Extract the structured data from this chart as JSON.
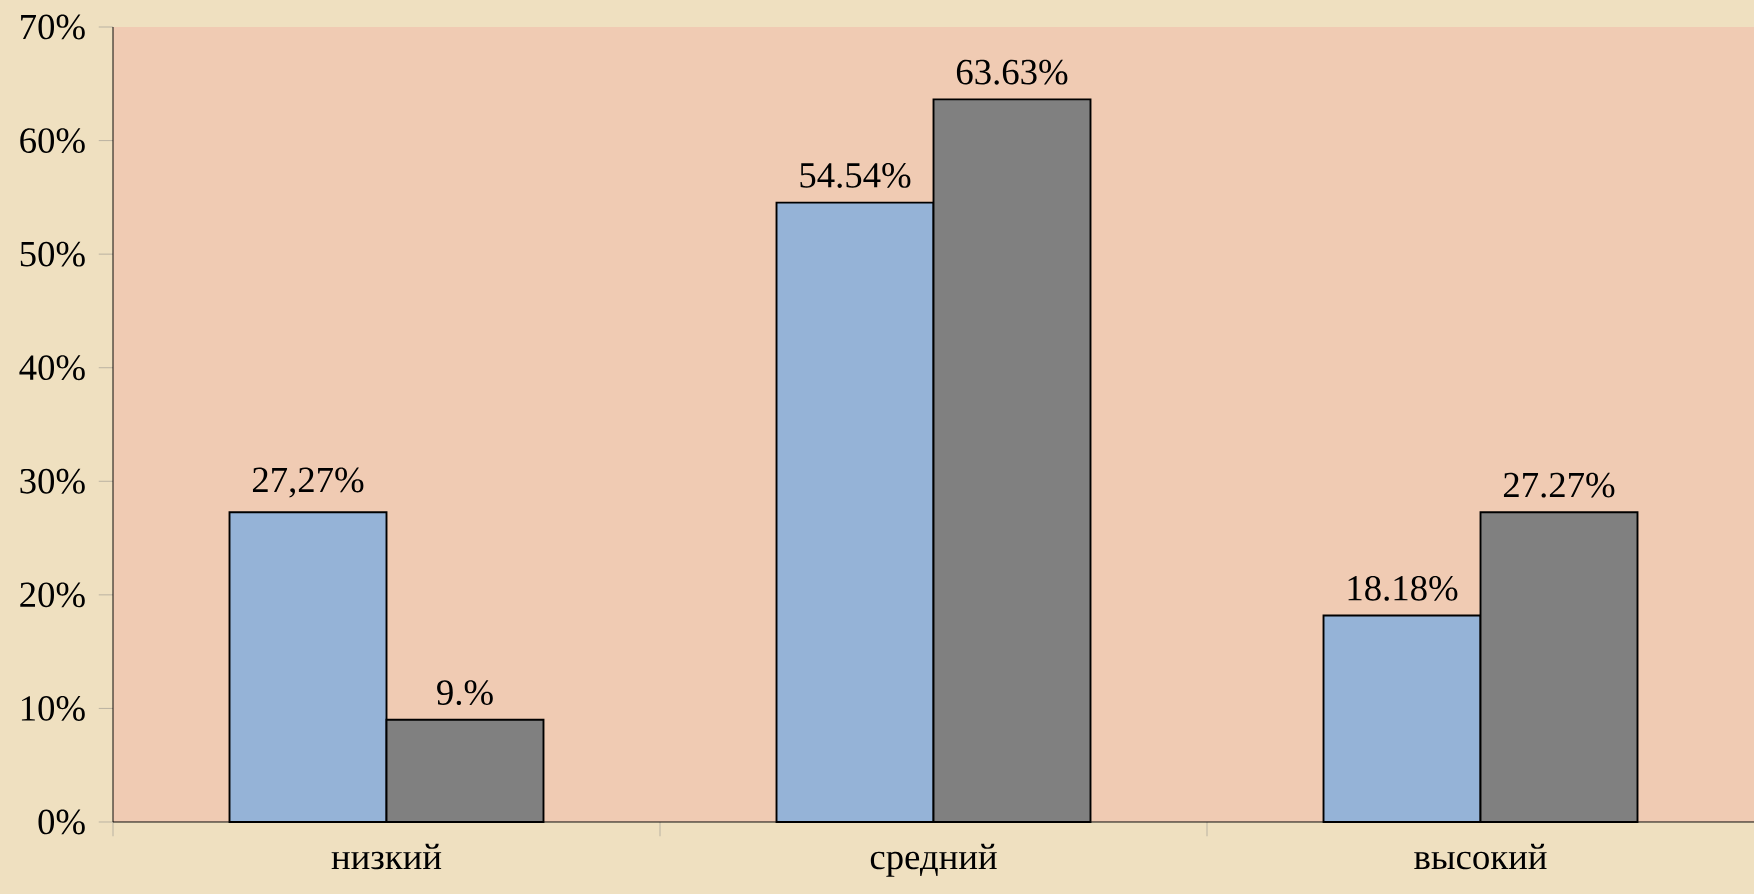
{
  "chart_data": {
    "type": "bar",
    "categories": [
      "низкий",
      "средний",
      "высокий"
    ],
    "series": [
      {
        "color": "#95b3d7",
        "values": [
          27.27,
          54.54,
          18.18
        ],
        "value_labels": [
          "27,27%",
          "54.54%",
          "18.18%"
        ]
      },
      {
        "color": "#808080",
        "values": [
          9,
          63.63,
          27.27
        ],
        "value_labels": [
          "9.%",
          "63.63%",
          "27.27%"
        ]
      }
    ],
    "ylim": [
      0,
      70
    ],
    "yticks": [
      {
        "value": 0,
        "label": "0%"
      },
      {
        "value": 10,
        "label": "10%"
      },
      {
        "value": 20,
        "label": "20%"
      },
      {
        "value": 30,
        "label": "30%"
      },
      {
        "value": 40,
        "label": "40%"
      },
      {
        "value": 50,
        "label": "50%"
      },
      {
        "value": 60,
        "label": "60%"
      },
      {
        "value": 70,
        "label": "70%"
      }
    ]
  }
}
